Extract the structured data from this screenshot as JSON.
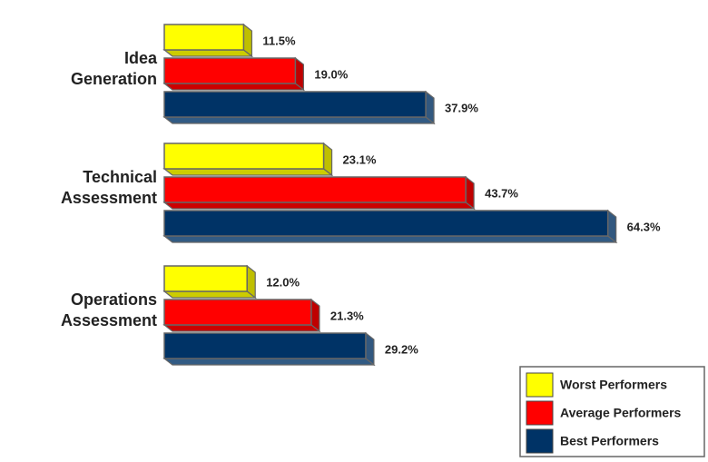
{
  "chart_data": {
    "type": "bar3d-horizontal",
    "categories": [
      "Idea Generation",
      "Technical Assessment",
      "Operations Assessment"
    ],
    "series": [
      {
        "name": "Worst Performers",
        "color": "#ffff00",
        "values": [
          11.5,
          23.1,
          12.0
        ],
        "value_labels": [
          "11.5%",
          "23.1%",
          "12.0%"
        ]
      },
      {
        "name": "Average Performers",
        "color": "#ff0000",
        "values": [
          19.0,
          43.7,
          21.3
        ],
        "value_labels": [
          "19.0%",
          "43.7%",
          "21.3%"
        ]
      },
      {
        "name": "Best Performers",
        "color": "#003366",
        "values": [
          37.9,
          64.3,
          29.2
        ],
        "value_labels": [
          "37.9%",
          "64.3%",
          "29.2%"
        ]
      }
    ],
    "legend": "bottom-right"
  }
}
